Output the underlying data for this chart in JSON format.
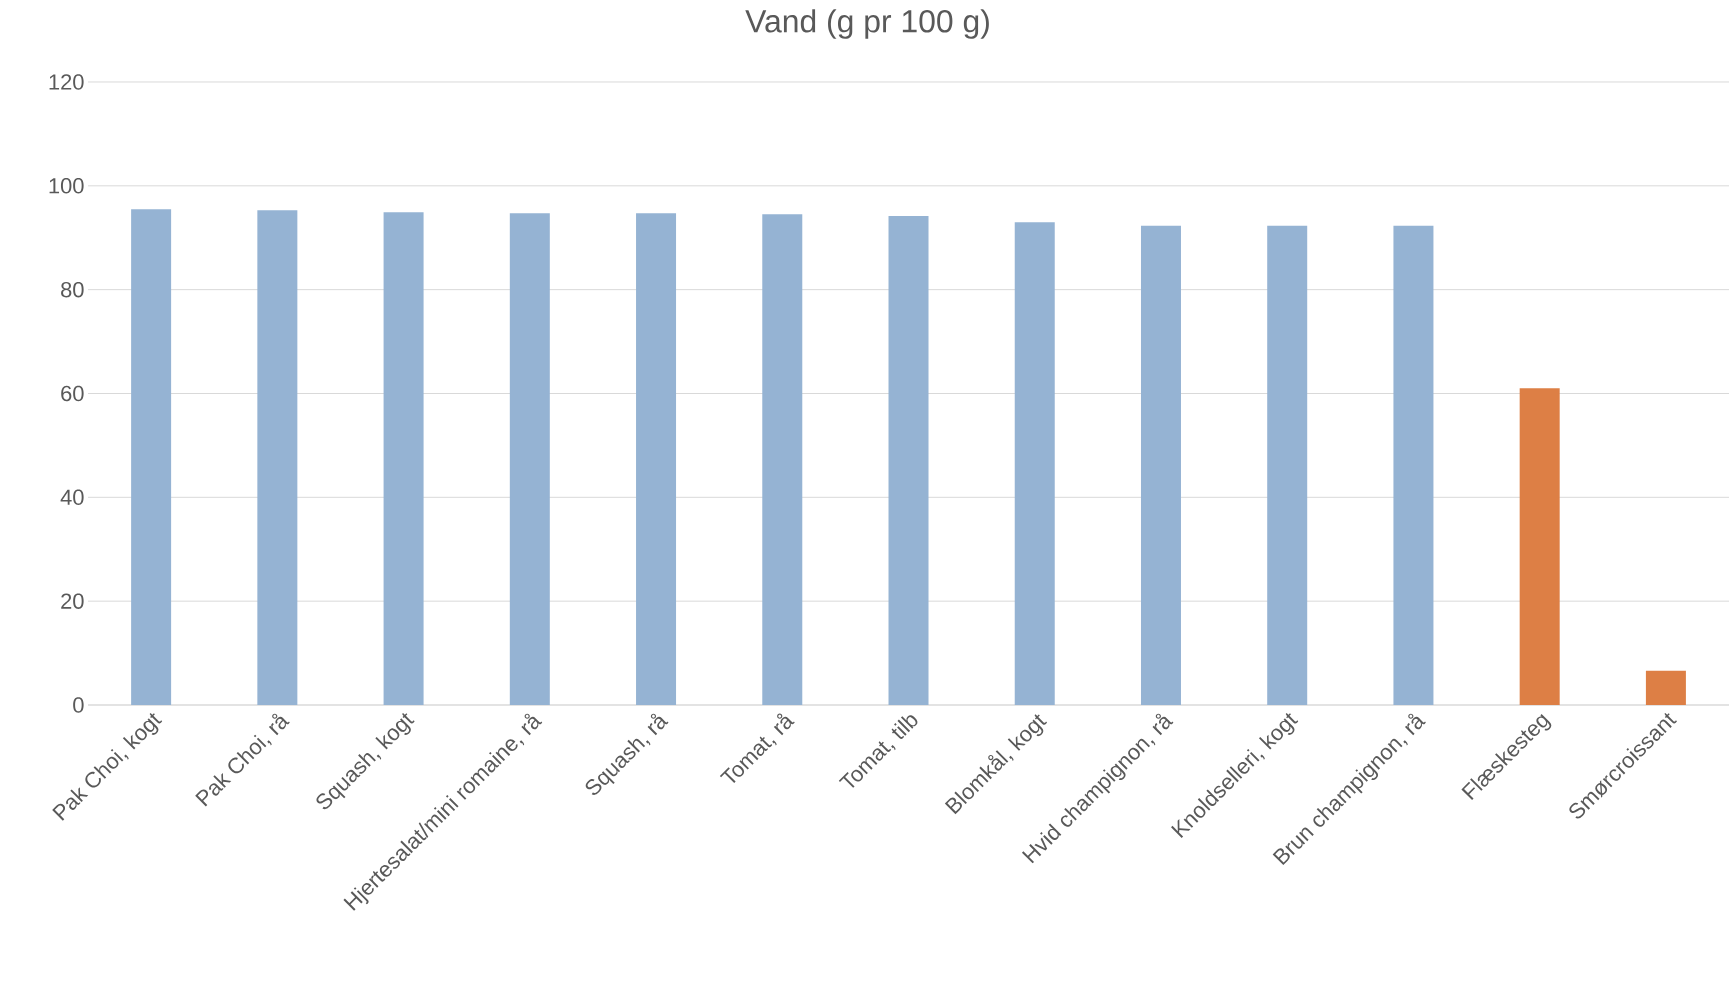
{
  "chart_data": {
    "type": "bar",
    "title": "Vand (g pr 100 g)",
    "categories": [
      "Pak Choi, kogt",
      "Pak Choi, rå",
      "Squash, kogt",
      "Hjertesalat/mini romaine, rå",
      "Squash, rå",
      "Tomat, rå",
      "Tomat, tilb",
      "Blomkål, kogt",
      "Hvid champignon, rå",
      "Knoldselleri, kogt",
      "Brun champignon, rå",
      "Flæskesteg",
      "Smørcroissant"
    ],
    "values": [
      95.5,
      95.3,
      94.9,
      94.7,
      94.7,
      94.5,
      94.2,
      93.0,
      92.3,
      92.3,
      92.3,
      61.0,
      6.6
    ],
    "colors": [
      "#95b3d3",
      "#95b3d3",
      "#95b3d3",
      "#95b3d3",
      "#95b3d3",
      "#95b3d3",
      "#95b3d3",
      "#95b3d3",
      "#95b3d3",
      "#95b3d3",
      "#95b3d3",
      "#dd7f45",
      "#dd7f45"
    ],
    "ylim": [
      0,
      120
    ],
    "yticks": [
      0,
      20,
      40,
      60,
      80,
      100,
      120
    ],
    "grid": "y"
  }
}
